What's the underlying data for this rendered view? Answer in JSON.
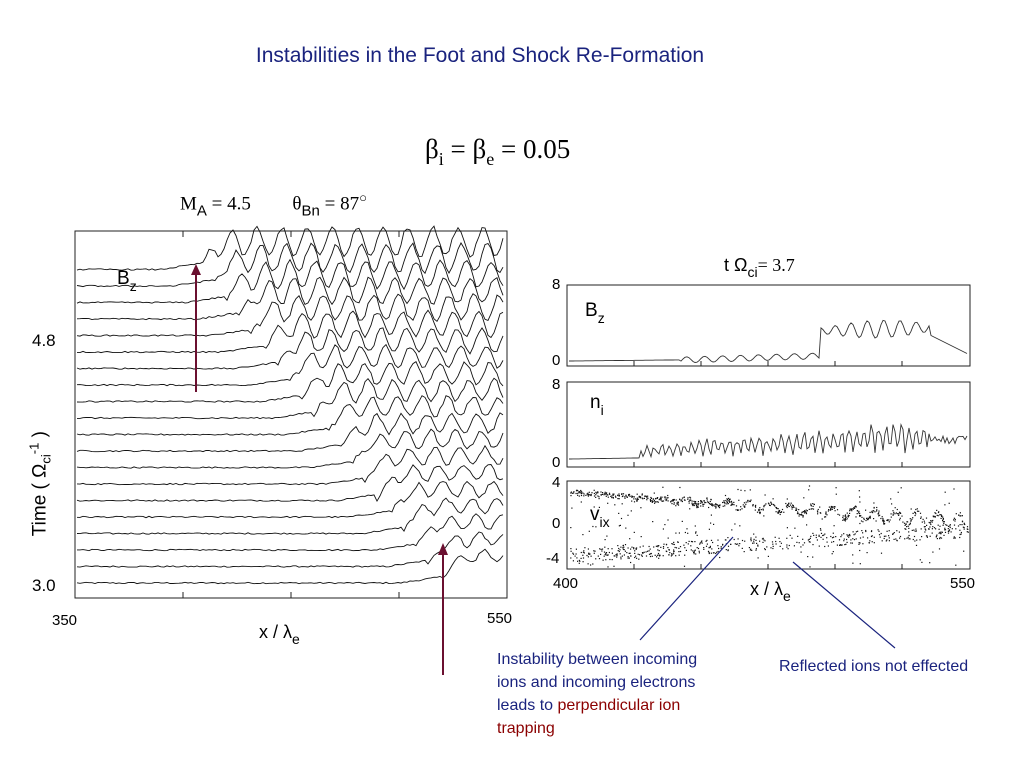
{
  "slide": {
    "title": "Instabilities in the Foot and Shock Re-Formation"
  },
  "params": {
    "beta_i": "β",
    "beta_i_sub": "i",
    "equals1": " = ",
    "beta_e": "β",
    "beta_e_sub": "e",
    "equals2": " = ",
    "beta_value": "0.05",
    "mach_symbol": "M",
    "mach_sub": "A",
    "mach_value": " = 4.5",
    "theta_symbol": "θ",
    "theta_sub": "Bn",
    "theta_value": " = 87",
    "theta_unit": "○"
  },
  "left_plot": {
    "field_label": "B",
    "field_sub": "z",
    "time_top": "4.8",
    "time_bottom": "3.0",
    "x_min": "350",
    "x_max": "550",
    "xaxis_label": "x / λ",
    "xaxis_sub": "e",
    "yaxis_label": "Time ( Ω",
    "yaxis_sup": "-1",
    "yaxis_sub": "ci",
    "yaxis_close": " )"
  },
  "right_plot": {
    "time_label": "t Ω",
    "time_sub": "ci",
    "time_value": "= 3.7",
    "panels": [
      {
        "label": "B",
        "sub": "z",
        "ymax": "8",
        "ymin": "0"
      },
      {
        "label": "n",
        "sub": "i",
        "ymax": "8",
        "ymin": "0"
      },
      {
        "label": "v",
        "sub": "ix",
        "ymax": "4",
        "ymid": "0",
        "ymin": "-4"
      }
    ],
    "x_min": "400",
    "x_max": "550",
    "xaxis_label": "x / λ",
    "xaxis_sub": "e"
  },
  "annotations": {
    "note1_line1": "Instability between incoming",
    "note1_line2": "ions and incoming electrons",
    "note1_line3_prefix": "leads to ",
    "note1_line3_red": "perpendicular ion",
    "note1_line4_red": "trapping",
    "note2": "Reflected ions not effected"
  },
  "colors": {
    "title": "#1a237e",
    "arrow": "#6b1030",
    "pointer": "#1a237e",
    "emphasis": "#8b0000"
  }
}
